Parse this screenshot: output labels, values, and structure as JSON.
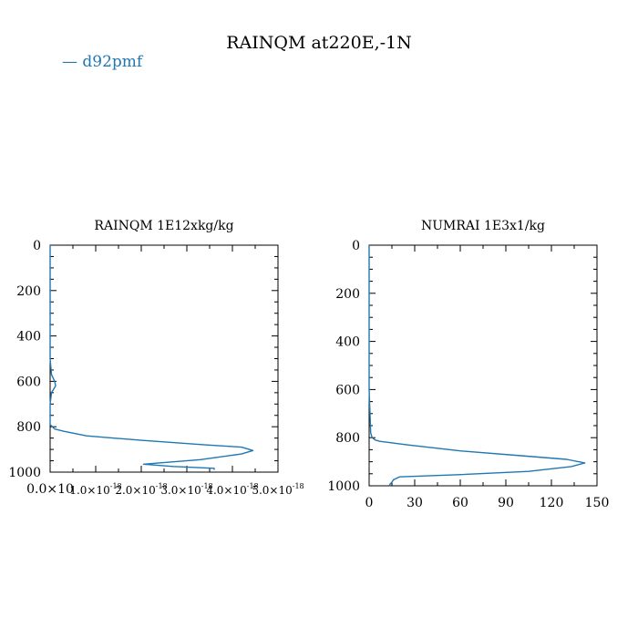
{
  "figure": {
    "title": "RAINQM at220E,-1N",
    "legend": {
      "label": "d92pmf",
      "marker": "—",
      "color": "#1f77b4"
    }
  },
  "chart_data": [
    {
      "type": "line",
      "title": "RAINQM  1E12xkg/kg",
      "xlabel": "",
      "ylabel": "",
      "xlim": [
        0,
        5e-18
      ],
      "ylim": [
        1000,
        0
      ],
      "yinverted": true,
      "xticks": [
        0,
        1e-18,
        2e-18,
        3e-18,
        4e-18,
        5e-18
      ],
      "xtick_labels": [
        "0.0×10",
        "1.0×10",
        "2.0×10",
        "3.0×10",
        "4.0×10",
        "5.0×10"
      ],
      "xtick_exps": [
        "",
        "-18",
        "-18",
        "-18",
        "-18",
        "-18"
      ],
      "yticks": [
        0,
        200,
        400,
        600,
        800,
        1000
      ],
      "ytick_labels": [
        "0",
        "200",
        "400",
        "600",
        "800",
        "1000"
      ],
      "series": [
        {
          "name": "d92pmf",
          "color": "#1f77b4",
          "x": [
            0,
            0,
            3e-20,
            1e-19,
            1.2e-19,
            3e-20,
            0,
            0,
            5e-20,
            1e-19,
            3e-19,
            8e-19,
            2e-18,
            3.4e-18,
            4.2e-18,
            4.45e-18,
            4.2e-18,
            3.3e-18,
            2.05e-18,
            2.7e-18,
            3.6e-18,
            3.6e-18
          ],
          "y": [
            0,
            500,
            570,
            600,
            620,
            650,
            700,
            790,
            800,
            810,
            820,
            840,
            860,
            880,
            890,
            905,
            920,
            945,
            965,
            975,
            983,
            990
          ]
        }
      ]
    },
    {
      "type": "line",
      "title": "NUMRAI  1E3x1/kg",
      "xlabel": "",
      "ylabel": "",
      "xlim": [
        0,
        150
      ],
      "ylim": [
        1000,
        0
      ],
      "yinverted": true,
      "xticks": [
        0,
        30,
        60,
        90,
        120,
        150
      ],
      "xtick_labels": [
        "0",
        "30",
        "60",
        "90",
        "120",
        "150"
      ],
      "xtick_exps": [
        "",
        "",
        "",
        "",
        "",
        ""
      ],
      "yticks": [
        0,
        200,
        400,
        600,
        800,
        1000
      ],
      "ytick_labels": [
        "0",
        "200",
        "400",
        "600",
        "800",
        "1000"
      ],
      "series": [
        {
          "name": "d92pmf",
          "color": "#1f77b4",
          "x": [
            0,
            0,
            1,
            2,
            4,
            7,
            25,
            60,
            100,
            130,
            142,
            133,
            105,
            55,
            20,
            16,
            15,
            14,
            13
          ],
          "y": [
            0,
            600,
            780,
            800,
            810,
            815,
            830,
            855,
            875,
            890,
            905,
            920,
            940,
            955,
            963,
            975,
            985,
            992,
            1000
          ]
        }
      ]
    }
  ]
}
